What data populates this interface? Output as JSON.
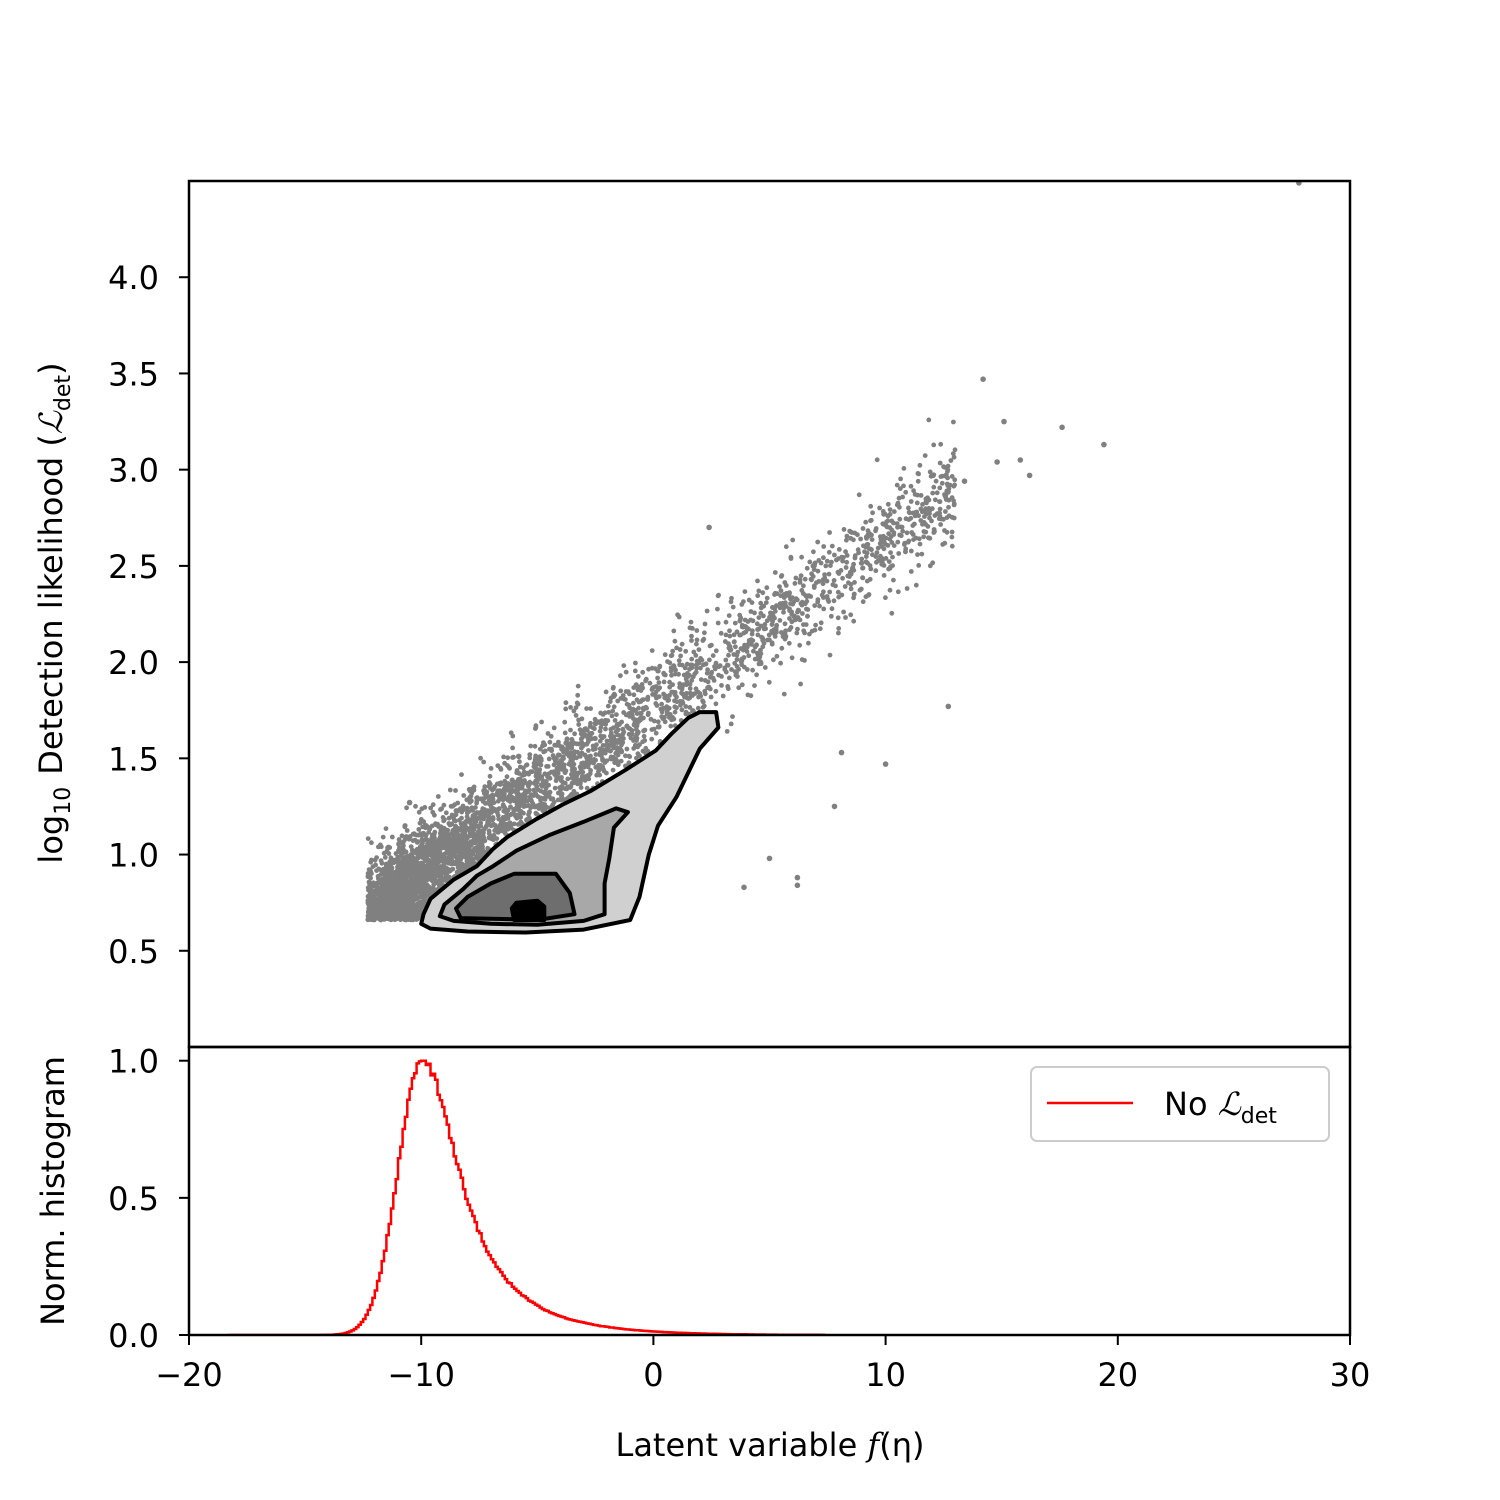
{
  "chart_data": [
    {
      "panel": "top",
      "type": "scatter",
      "xlim": [
        -20,
        30
      ],
      "ylim": [
        0.0,
        4.5
      ],
      "yticks": [
        "0.5",
        "1.0",
        "1.5",
        "2.0",
        "2.5",
        "3.0",
        "3.5",
        "4.0"
      ],
      "ylabel": {
        "prefix": "log",
        "prefix_sub": "10",
        "text": "Detection likelihood (",
        "symbol": "ℒ",
        "symbol_sub": "det",
        "close": ")"
      },
      "point_color": "#808080",
      "point_count_drawn": 4200,
      "cloud_trend": {
        "x_start": -12,
        "y_start": 0.62,
        "x_end": 15,
        "y_end": 3.0
      },
      "outlier_points": [
        {
          "x": 14.2,
          "y": 3.47
        },
        {
          "x": 15.1,
          "y": 3.25
        },
        {
          "x": 17.6,
          "y": 3.22
        },
        {
          "x": 19.4,
          "y": 3.13
        },
        {
          "x": 15.8,
          "y": 3.05
        },
        {
          "x": 14.8,
          "y": 3.04
        },
        {
          "x": 16.2,
          "y": 2.97
        },
        {
          "x": 13.4,
          "y": 2.94
        },
        {
          "x": 2.4,
          "y": 2.7
        },
        {
          "x": 27.8,
          "y": 4.49
        },
        {
          "x": 10.0,
          "y": 1.47
        },
        {
          "x": 12.7,
          "y": 1.77
        },
        {
          "x": 8.1,
          "y": 1.53
        },
        {
          "x": 7.8,
          "y": 1.25
        },
        {
          "x": 5.0,
          "y": 0.98
        },
        {
          "x": 6.2,
          "y": 0.88
        },
        {
          "x": 6.2,
          "y": 0.84
        },
        {
          "x": 3.9,
          "y": 0.83
        },
        {
          "x": -10.5,
          "y": 1.27
        },
        {
          "x": -5.8,
          "y": 1.51
        },
        {
          "x": -12.1,
          "y": 0.73
        }
      ],
      "contours": [
        {
          "level": 1,
          "fill": "#d0d0d0",
          "points": [
            [
              2.0,
              1.74
            ],
            [
              2.7,
              1.74
            ],
            [
              2.8,
              1.66
            ],
            [
              2.0,
              1.55
            ],
            [
              1.0,
              1.3
            ],
            [
              0.2,
              1.15
            ],
            [
              -0.2,
              1.0
            ],
            [
              -0.6,
              0.78
            ],
            [
              -1.0,
              0.66
            ],
            [
              -3.0,
              0.61
            ],
            [
              -5.5,
              0.595
            ],
            [
              -8.0,
              0.6
            ],
            [
              -9.6,
              0.615
            ],
            [
              -10.0,
              0.64
            ],
            [
              -9.9,
              0.69
            ],
            [
              -9.6,
              0.77
            ],
            [
              -8.6,
              0.87
            ],
            [
              -7.6,
              0.94
            ],
            [
              -6.9,
              1.03
            ],
            [
              -6.3,
              1.09
            ],
            [
              -5.1,
              1.18
            ],
            [
              -3.9,
              1.26
            ],
            [
              -2.7,
              1.33
            ],
            [
              -1.2,
              1.44
            ],
            [
              0.1,
              1.54
            ],
            [
              0.8,
              1.63
            ],
            [
              1.5,
              1.71
            ]
          ]
        },
        {
          "level": 2,
          "fill": "#a8a8a8",
          "points": [
            [
              -3.0,
              1.17
            ],
            [
              -1.6,
              1.24
            ],
            [
              -1.1,
              1.22
            ],
            [
              -1.7,
              1.14
            ],
            [
              -1.9,
              0.98
            ],
            [
              -2.1,
              0.85
            ],
            [
              -2.1,
              0.69
            ],
            [
              -3.0,
              0.655
            ],
            [
              -5.0,
              0.635
            ],
            [
              -7.0,
              0.64
            ],
            [
              -8.6,
              0.655
            ],
            [
              -9.2,
              0.68
            ],
            [
              -9.0,
              0.74
            ],
            [
              -8.2,
              0.82
            ],
            [
              -7.6,
              0.89
            ],
            [
              -6.9,
              0.94
            ],
            [
              -5.9,
              1.02
            ],
            [
              -4.5,
              1.1
            ]
          ]
        },
        {
          "level": 3,
          "fill": "#6e6e6e",
          "points": [
            [
              -4.2,
              0.9
            ],
            [
              -3.6,
              0.8
            ],
            [
              -3.4,
              0.69
            ],
            [
              -5.0,
              0.66
            ],
            [
              -6.5,
              0.665
            ],
            [
              -8.3,
              0.67
            ],
            [
              -8.5,
              0.72
            ],
            [
              -8.0,
              0.78
            ],
            [
              -7.0,
              0.85
            ],
            [
              -6.0,
              0.9
            ]
          ]
        },
        {
          "level": 4,
          "fill": "#000000",
          "points": [
            [
              -5.9,
              0.75
            ],
            [
              -5.0,
              0.76
            ],
            [
              -4.7,
              0.73
            ],
            [
              -4.7,
              0.66
            ],
            [
              -6.0,
              0.66
            ],
            [
              -6.1,
              0.72
            ]
          ]
        }
      ]
    },
    {
      "panel": "bottom",
      "type": "line",
      "xlim": [
        -20,
        30
      ],
      "ylim": [
        0.0,
        1.05
      ],
      "xticks": [
        -20,
        -10,
        0,
        10,
        20,
        30
      ],
      "xtick_labels": [
        "−20",
        "−10",
        "0",
        "10",
        "20",
        "30"
      ],
      "yticks": [
        "0.0",
        "0.5",
        "1.0"
      ],
      "xlabel": {
        "text": "Latent variable ",
        "func": "f",
        "arg": "(η)"
      },
      "ylabel": "Norm. histogram",
      "series": [
        {
          "name": "No ℒdet",
          "legend_prefix": "No ",
          "legend_symbol": "ℒ",
          "legend_sub": "det",
          "color": "#ff0000",
          "x_range": [
            -18.3,
            7.4
          ],
          "peak_x": -10.0,
          "peak_y": 1.0,
          "sigma_left": 1.05,
          "sigma_right": 1.9
        }
      ],
      "legend_position": "upper right"
    }
  ]
}
